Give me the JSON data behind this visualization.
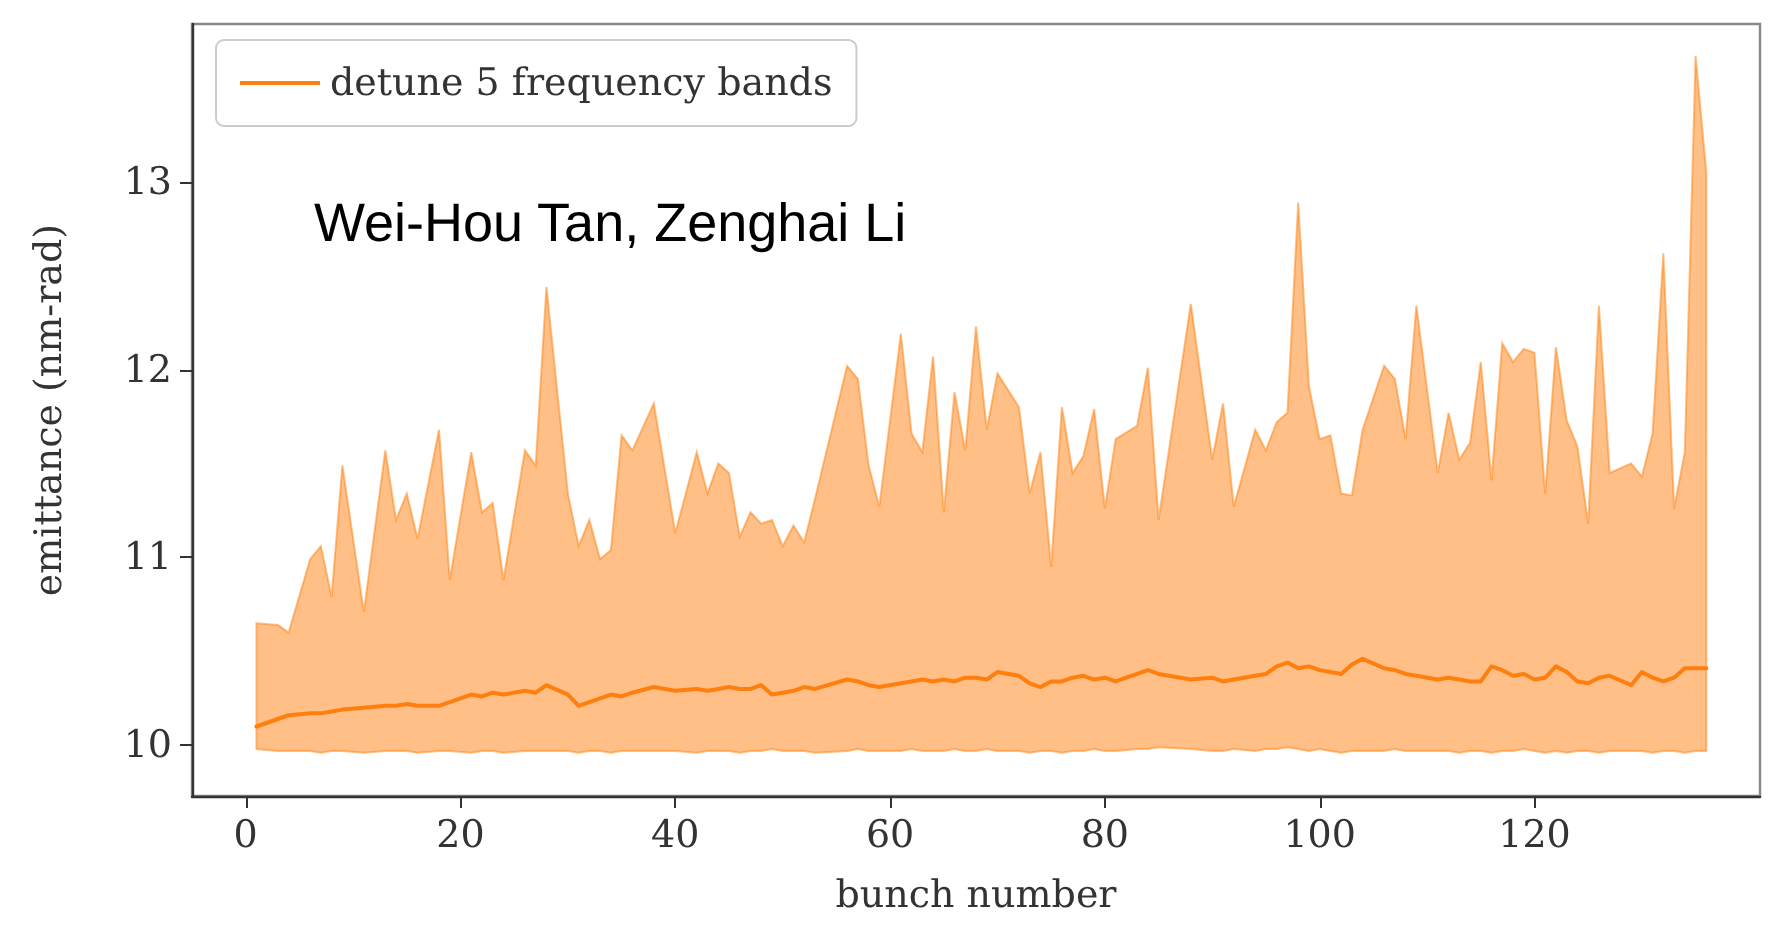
{
  "chart_data": {
    "type": "line",
    "xlabel": "bunch number",
    "ylabel": "emittance (nm-rad)",
    "annotations": [
      "Wei-Hou Tan, Zenghai Li"
    ],
    "xlim": [
      -5,
      141
    ],
    "xticks": [
      0,
      20,
      40,
      60,
      80,
      100,
      120
    ],
    "ylim": [
      9.73,
      13.84
    ],
    "yticks": [
      10,
      11,
      12,
      13
    ],
    "grid": false,
    "legend": "top left",
    "marker": "none",
    "line_style": "solid",
    "x": [
      1,
      3,
      4,
      6,
      7,
      8,
      9,
      11,
      13,
      14,
      15,
      16,
      18,
      19,
      21,
      22,
      23,
      24,
      26,
      27,
      28,
      30,
      31,
      32,
      33,
      34,
      35,
      36,
      38,
      40,
      42,
      43,
      44,
      45,
      46,
      47,
      48,
      49,
      50,
      51,
      52,
      53,
      56,
      57,
      58,
      59,
      61,
      62,
      63,
      64,
      65,
      66,
      67,
      68,
      69,
      70,
      72,
      73,
      74,
      75,
      76,
      77,
      78,
      79,
      80,
      81,
      83,
      84,
      85,
      88,
      90,
      91,
      92,
      94,
      95,
      96,
      97,
      98,
      99,
      100,
      101,
      102,
      103,
      104,
      106,
      107,
      108,
      109,
      111,
      112,
      113,
      114,
      115,
      116,
      117,
      118,
      119,
      120,
      121,
      122,
      123,
      124,
      125,
      126,
      127,
      129,
      130,
      131,
      132,
      133,
      134,
      135,
      136
    ],
    "series": [
      {
        "name": "detune 5 frequency bands",
        "color": "#ff7f0e",
        "values": [
          10.1,
          10.14,
          10.16,
          10.17,
          10.17,
          10.18,
          10.19,
          10.2,
          10.21,
          10.21,
          10.22,
          10.21,
          10.21,
          10.23,
          10.27,
          10.26,
          10.28,
          10.27,
          10.29,
          10.28,
          10.32,
          10.27,
          10.21,
          10.23,
          10.25,
          10.27,
          10.26,
          10.28,
          10.31,
          10.29,
          10.3,
          10.29,
          10.3,
          10.31,
          10.3,
          10.3,
          10.32,
          10.27,
          10.28,
          10.29,
          10.31,
          10.3,
          10.35,
          10.34,
          10.32,
          10.31,
          10.33,
          10.34,
          10.35,
          10.34,
          10.35,
          10.34,
          10.36,
          10.36,
          10.35,
          10.39,
          10.37,
          10.33,
          10.31,
          10.34,
          10.34,
          10.36,
          10.37,
          10.35,
          10.36,
          10.34,
          10.38,
          10.4,
          10.38,
          10.35,
          10.36,
          10.34,
          10.35,
          10.37,
          10.38,
          10.42,
          10.44,
          10.41,
          10.42,
          10.4,
          10.39,
          10.38,
          10.43,
          10.46,
          10.41,
          10.4,
          10.38,
          10.37,
          10.35,
          10.36,
          10.35,
          10.34,
          10.34,
          10.42,
          10.4,
          10.37,
          10.38,
          10.35,
          10.36,
          10.42,
          10.39,
          10.34,
          10.33,
          10.36,
          10.37,
          10.32,
          10.39,
          10.36,
          10.34,
          10.36,
          10.41,
          10.41,
          10.41
        ],
        "lower": [
          9.98,
          9.97,
          9.97,
          9.97,
          9.96,
          9.97,
          9.97,
          9.96,
          9.97,
          9.97,
          9.97,
          9.96,
          9.97,
          9.97,
          9.96,
          9.97,
          9.97,
          9.96,
          9.97,
          9.97,
          9.97,
          9.97,
          9.96,
          9.97,
          9.97,
          9.96,
          9.97,
          9.97,
          9.97,
          9.97,
          9.96,
          9.97,
          9.97,
          9.97,
          9.96,
          9.97,
          9.97,
          9.98,
          9.97,
          9.97,
          9.97,
          9.96,
          9.97,
          9.98,
          9.97,
          9.97,
          9.97,
          9.98,
          9.97,
          9.97,
          9.97,
          9.98,
          9.97,
          9.97,
          9.98,
          9.97,
          9.97,
          9.96,
          9.97,
          9.97,
          9.96,
          9.97,
          9.97,
          9.98,
          9.97,
          9.97,
          9.98,
          9.98,
          9.99,
          9.98,
          9.97,
          9.97,
          9.98,
          9.97,
          9.98,
          9.98,
          9.99,
          9.98,
          9.97,
          9.98,
          9.97,
          9.96,
          9.97,
          9.97,
          9.97,
          9.98,
          9.97,
          9.97,
          9.97,
          9.97,
          9.96,
          9.97,
          9.97,
          9.96,
          9.97,
          9.97,
          9.98,
          9.97,
          9.96,
          9.97,
          9.96,
          9.97,
          9.97,
          9.96,
          9.97,
          9.97,
          9.97,
          9.96,
          9.97,
          9.97,
          9.96,
          9.97,
          9.97
        ],
        "upper": [
          10.65,
          10.64,
          10.6,
          10.99,
          11.06,
          10.79,
          11.49,
          10.71,
          11.57,
          11.2,
          11.34,
          11.1,
          11.68,
          10.88,
          11.56,
          11.24,
          11.29,
          10.88,
          11.57,
          11.49,
          12.44,
          11.34,
          11.06,
          11.2,
          10.99,
          11.04,
          11.65,
          11.57,
          11.82,
          11.13,
          11.56,
          11.34,
          11.5,
          11.45,
          11.11,
          11.24,
          11.18,
          11.2,
          11.06,
          11.17,
          11.08,
          11.31,
          12.02,
          11.95,
          11.49,
          11.27,
          12.19,
          11.66,
          11.56,
          12.07,
          11.24,
          11.88,
          11.57,
          12.23,
          11.68,
          11.98,
          11.8,
          11.34,
          11.56,
          10.95,
          11.8,
          11.45,
          11.54,
          11.79,
          11.26,
          11.63,
          11.7,
          12.01,
          11.2,
          12.35,
          11.52,
          11.82,
          11.27,
          11.68,
          11.57,
          11.72,
          11.77,
          12.89,
          11.91,
          11.63,
          11.65,
          11.34,
          11.33,
          11.68,
          12.02,
          11.95,
          11.63,
          12.34,
          11.45,
          11.77,
          11.52,
          11.61,
          12.04,
          11.41,
          12.14,
          12.04,
          12.11,
          12.09,
          11.34,
          12.12,
          11.73,
          11.59,
          11.18,
          12.34,
          11.45,
          11.5,
          11.43,
          11.66,
          12.62,
          11.26,
          11.56,
          13.67,
          13.05
        ]
      }
    ]
  }
}
